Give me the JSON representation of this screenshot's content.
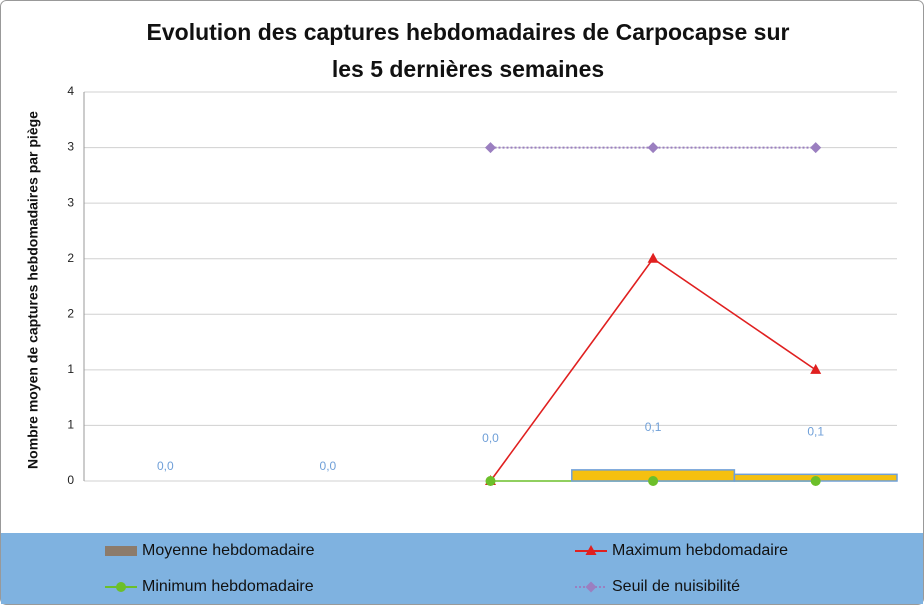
{
  "chart_data": {
    "type": "bar",
    "title": [
      "Evolution des captures hebdomadaires de Carpocapse sur",
      "les 5 dernières semaines"
    ],
    "y_label": "Nombre moyen de captures hebdomadaires par piège",
    "categories": [
      null,
      null,
      null,
      null,
      null
    ],
    "ylim": [
      0,
      3.5
    ],
    "yticks": [
      0,
      {
        "value": 0.5,
        "label": "1"
      },
      1,
      {
        "value": 1.5,
        "label": "2"
      },
      2,
      {
        "value": 2.5,
        "label": "3"
      },
      3,
      {
        "value": 3.5,
        "label": "4"
      }
    ],
    "grid": true,
    "legend": "bottom",
    "series": [
      {
        "name": "Moyenne hebdomadaire",
        "type": "bar",
        "color": "#f5c010",
        "edge_color": "#6f9fd8",
        "legend_color": "#8c7b6b",
        "label_color": "#6f9fd8",
        "values": [
          0,
          0,
          0,
          0.1,
          0.06
        ],
        "value_labels": [
          "0,0",
          "0,0",
          "0,0",
          "0,1",
          "0,1"
        ]
      },
      {
        "name": "Maximum hebdomadaire",
        "type": "line",
        "color": "#e02020",
        "marker": "triangle",
        "values": [
          null,
          null,
          0,
          2,
          1
        ]
      },
      {
        "name": "Minimum hebdomadaire",
        "type": "line",
        "color": "#6cbf2a",
        "marker": "circle",
        "values": [
          null,
          null,
          0,
          0,
          0
        ]
      },
      {
        "name": "Seuil de nuisibilité",
        "type": "line",
        "color": "#9b7fc0",
        "marker": "diamond",
        "dashed": true,
        "values": [
          null,
          null,
          3,
          3,
          3
        ]
      }
    ]
  }
}
